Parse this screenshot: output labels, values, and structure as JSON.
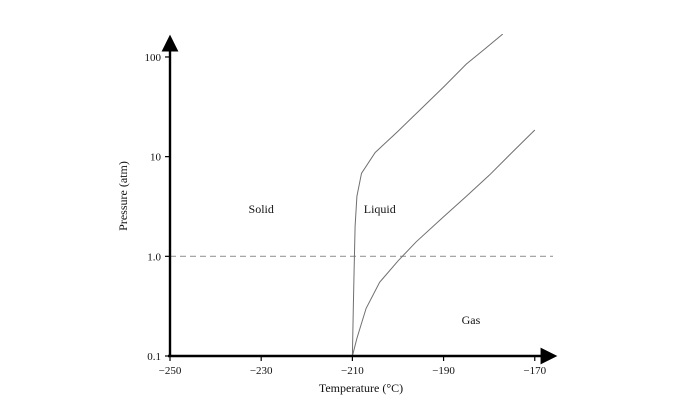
{
  "chart_data": {
    "type": "area",
    "title": "",
    "xlabel": "Temperature (°C)",
    "ylabel": "Pressure (atm)",
    "xlim": [
      -250,
      -166
    ],
    "ylim": [
      0.1,
      170
    ],
    "yscale": "log",
    "grid": false,
    "x_ticks": [
      -250,
      -230,
      -210,
      -190,
      -170
    ],
    "x_tick_labels": [
      "−250",
      "−230",
      "−210",
      "−190",
      "−170"
    ],
    "y_ticks": [
      0.1,
      1.0,
      10,
      100
    ],
    "y_tick_labels": [
      "0.1",
      "1.0",
      "10",
      "100"
    ],
    "reference_line": {
      "axis": "y",
      "value": 1.0,
      "style": "dashed"
    },
    "regions": [
      {
        "key": "solid",
        "label": "Solid",
        "color": "#fbf6b4",
        "label_at": [
          -230,
          3.0
        ]
      },
      {
        "key": "liquid",
        "label": "Liquid",
        "color": "#c9fbfb",
        "label_at": [
          -204,
          3.0
        ]
      },
      {
        "key": "gas",
        "label": "Gas",
        "color": "#ffffff",
        "label_at": [
          -184,
          0.23
        ]
      }
    ],
    "series": [
      {
        "key": "melting-curve",
        "color": "#6f6f6f",
        "points": [
          [
            -210,
            0.1
          ],
          [
            -209.8,
            0.3
          ],
          [
            -209.6,
            0.8
          ],
          [
            -209.4,
            2.0
          ],
          [
            -209,
            4.0
          ],
          [
            -208,
            6.8
          ],
          [
            -205,
            11
          ],
          [
            -200,
            18
          ],
          [
            -195,
            30
          ],
          [
            -190,
            50
          ],
          [
            -185,
            85
          ],
          [
            -181,
            120
          ],
          [
            -177,
            170
          ]
        ]
      },
      {
        "key": "vaporization-curve",
        "color": "#6f6f6f",
        "points": [
          [
            -210,
            0.1
          ],
          [
            -209,
            0.15
          ],
          [
            -207,
            0.3
          ],
          [
            -204,
            0.55
          ],
          [
            -200,
            0.9
          ],
          [
            -196,
            1.4
          ],
          [
            -190,
            2.5
          ],
          [
            -185,
            4.0
          ],
          [
            -180,
            6.5
          ],
          [
            -175,
            11
          ],
          [
            -170,
            18.5
          ]
        ]
      }
    ]
  }
}
